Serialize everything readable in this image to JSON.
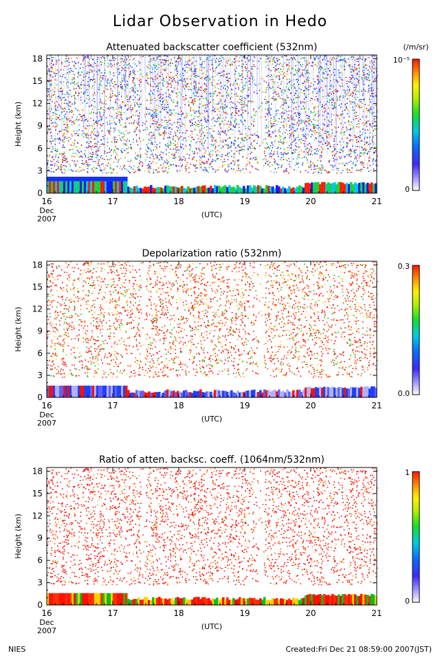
{
  "title": "Lidar Observation in Hedo",
  "footer": {
    "left": "NIES",
    "right": "Created:Fri Dec 21 08:59:00 2007(JST)"
  },
  "chart_data": [
    {
      "type": "heatmap",
      "title": "Attenuated backscatter coefficient (532nm)",
      "ylabel": "Height (km)",
      "xlabel": "(UTC)",
      "x_ticks": [
        "16",
        "17",
        "18",
        "19",
        "20",
        "21"
      ],
      "x_start_labels": [
        "Dec",
        "2007"
      ],
      "y_ticks": [
        0,
        3,
        6,
        9,
        12,
        15,
        18
      ],
      "xlim": [
        16,
        21
      ],
      "ylim": [
        0,
        18.5
      ],
      "colorbar": {
        "min_label": "0",
        "max_label": "10⁻⁵",
        "unit": "(/m/sr)"
      }
    },
    {
      "type": "heatmap",
      "title": "Depolarization ratio (532nm)",
      "ylabel": "Height (km)",
      "xlabel": "(UTC)",
      "x_ticks": [
        "16",
        "17",
        "18",
        "19",
        "20",
        "21"
      ],
      "x_start_labels": [
        "Dec",
        "2007"
      ],
      "y_ticks": [
        0,
        3,
        6,
        9,
        12,
        15,
        18
      ],
      "xlim": [
        16,
        21
      ],
      "ylim": [
        0,
        18.5
      ],
      "colorbar": {
        "min_label": "0.0",
        "max_label": "0.3",
        "unit": ""
      }
    },
    {
      "type": "heatmap",
      "title": "Ratio of atten. backsc. coeff. (1064nm/532nm)",
      "ylabel": "Height (km)",
      "xlabel": "(UTC)",
      "x_ticks": [
        "16",
        "17",
        "18",
        "19",
        "20",
        "21"
      ],
      "x_start_labels": [
        "Dec",
        "2007"
      ],
      "y_ticks": [
        0,
        3,
        6,
        9,
        12,
        15,
        18
      ],
      "xlim": [
        16,
        21
      ],
      "ylim": [
        0,
        18.5
      ],
      "colorbar": {
        "min_label": "0",
        "max_label": "1",
        "unit": ""
      }
    }
  ]
}
